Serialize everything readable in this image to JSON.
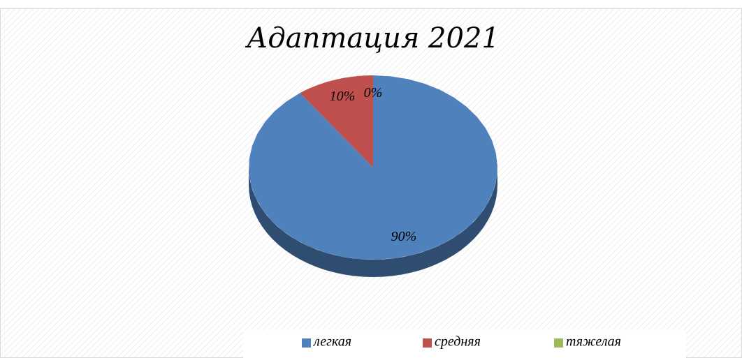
{
  "chart_data": {
    "type": "pie",
    "title": "Адаптация 2021",
    "categories": [
      "легкая",
      "средняя",
      "тяжелая"
    ],
    "values": [
      90,
      10,
      0
    ],
    "value_labels": [
      "90%",
      "10%",
      "0%"
    ],
    "colors": [
      "#4f81bd",
      "#c0504d",
      "#9bbb59"
    ],
    "legend": "bottom"
  }
}
